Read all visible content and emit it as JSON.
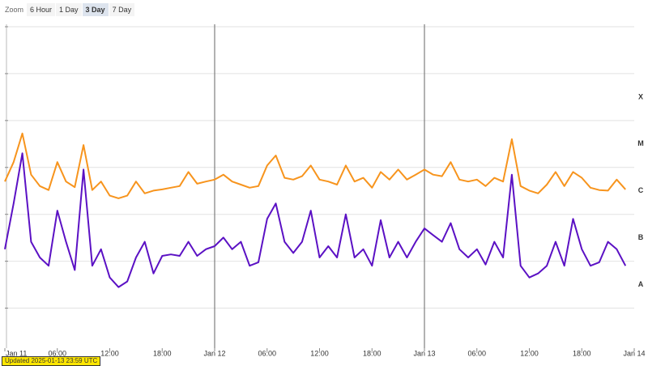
{
  "ui": {
    "zoom_label": "Zoom",
    "zoom_buttons": [
      "6 Hour",
      "1 Day",
      "3 Day",
      "7 Day"
    ],
    "active_button": 2,
    "updated": "Updated 2025-01-13 23:59 UTC"
  },
  "chart_data": {
    "type": "line",
    "log_y": true,
    "grid": true,
    "x": [
      "Jan 11 00:00",
      "Jan 11 01:00",
      "Jan 11 02:00",
      "Jan 11 03:00",
      "Jan 11 04:00",
      "Jan 11 05:00",
      "Jan 11 06:00",
      "Jan 11 07:00",
      "Jan 11 08:00",
      "Jan 11 09:00",
      "Jan 11 10:00",
      "Jan 11 11:00",
      "Jan 11 12:00",
      "Jan 11 13:00",
      "Jan 11 14:00",
      "Jan 11 15:00",
      "Jan 11 16:00",
      "Jan 11 17:00",
      "Jan 11 18:00",
      "Jan 11 19:00",
      "Jan 11 20:00",
      "Jan 11 21:00",
      "Jan 11 22:00",
      "Jan 11 23:00",
      "Jan 12 00:00",
      "Jan 12 01:00",
      "Jan 12 02:00",
      "Jan 12 03:00",
      "Jan 12 04:00",
      "Jan 12 05:00",
      "Jan 12 06:00",
      "Jan 12 07:00",
      "Jan 12 08:00",
      "Jan 12 09:00",
      "Jan 12 10:00",
      "Jan 12 11:00",
      "Jan 12 12:00",
      "Jan 12 13:00",
      "Jan 12 14:00",
      "Jan 12 15:00",
      "Jan 12 16:00",
      "Jan 12 17:00",
      "Jan 12 18:00",
      "Jan 12 19:00",
      "Jan 12 20:00",
      "Jan 12 21:00",
      "Jan 12 22:00",
      "Jan 12 23:00",
      "Jan 13 00:00",
      "Jan 13 01:00",
      "Jan 13 02:00",
      "Jan 13 03:00",
      "Jan 13 04:00",
      "Jan 13 05:00",
      "Jan 13 06:00",
      "Jan 13 07:00",
      "Jan 13 08:00",
      "Jan 13 09:00",
      "Jan 13 10:00",
      "Jan 13 11:00",
      "Jan 13 12:00",
      "Jan 13 13:00",
      "Jan 13 14:00",
      "Jan 13 15:00",
      "Jan 13 16:00",
      "Jan 13 17:00",
      "Jan 13 18:00",
      "Jan 13 19:00",
      "Jan 13 20:00",
      "Jan 13 21:00",
      "Jan 13 22:00",
      "Jan 13 23:00"
    ],
    "xlim": [
      "Jan 11 00:00",
      "Jan 14 00:00"
    ],
    "xticks": [
      {
        "value": "Jan 11 00:00",
        "label": "Jan 11"
      },
      {
        "value": "Jan 11 06:00",
        "label": "06:00"
      },
      {
        "value": "Jan 11 12:00",
        "label": "12:00"
      },
      {
        "value": "Jan 11 18:00",
        "label": "18:00"
      },
      {
        "value": "Jan 12 00:00",
        "label": "Jan 12"
      },
      {
        "value": "Jan 12 06:00",
        "label": "06:00"
      },
      {
        "value": "Jan 12 12:00",
        "label": "12:00"
      },
      {
        "value": "Jan 12 18:00",
        "label": "18:00"
      },
      {
        "value": "Jan 13 00:00",
        "label": "Jan 13"
      },
      {
        "value": "Jan 13 06:00",
        "label": "06:00"
      },
      {
        "value": "Jan 13 12:00",
        "label": "12:00"
      },
      {
        "value": "Jan 13 18:00",
        "label": "18:00"
      },
      {
        "value": "Jan 14 00:00",
        "label": "Jan 14"
      }
    ],
    "ylim": [
      1.4e-09,
      0.01
    ],
    "ygrid": [
      1e-08,
      1e-07,
      1e-06,
      1e-05,
      0.0001,
      0.001,
      0.01
    ],
    "yticks": [
      {
        "value": 3.16e-08,
        "label": "A"
      },
      {
        "value": 3.16e-07,
        "label": "B"
      },
      {
        "value": 3.16e-06,
        "label": "C"
      },
      {
        "value": 3.16e-05,
        "label": "M"
      },
      {
        "value": 0.000316,
        "label": "X"
      }
    ],
    "series": [
      {
        "color": "#f7941d",
        "values": [
          5e-06,
          1.3e-05,
          5.3e-05,
          7e-06,
          4e-06,
          3.3e-06,
          1.3e-05,
          5e-06,
          3.8e-06,
          3e-05,
          3.3e-06,
          5e-06,
          2.5e-06,
          2.2e-06,
          2.5e-06,
          5e-06,
          2.8e-06,
          3.2e-06,
          3.4e-06,
          3.7e-06,
          4e-06,
          8e-06,
          4.5e-06,
          5e-06,
          5.5e-06,
          7e-06,
          5e-06,
          4.3e-06,
          3.7e-06,
          4e-06,
          1.1e-05,
          1.8e-05,
          6e-06,
          5.5e-06,
          6.5e-06,
          1.1e-05,
          5.5e-06,
          5e-06,
          4.3e-06,
          1.1e-05,
          5e-06,
          6e-06,
          3.7e-06,
          8e-06,
          5.5e-06,
          9e-06,
          5.5e-06,
          7e-06,
          9e-06,
          7e-06,
          6.5e-06,
          1.3e-05,
          5.5e-06,
          5e-06,
          5.5e-06,
          4e-06,
          6e-06,
          5e-06,
          4e-05,
          4e-06,
          3.2e-06,
          2.8e-06,
          4.3e-06,
          8e-06,
          4e-06,
          8e-06,
          6e-06,
          3.7e-06,
          3.3e-06,
          3.2e-06,
          5.5e-06,
          3.4e-06
        ]
      },
      {
        "color": "#5b11c4",
        "values": [
          1.8e-07,
          1.7e-06,
          2e-05,
          2.6e-07,
          1.2e-07,
          8e-08,
          1.2e-06,
          2.6e-07,
          6.5e-08,
          9e-06,
          8e-08,
          1.8e-07,
          4.5e-08,
          2.8e-08,
          3.7e-08,
          1.2e-07,
          2.6e-07,
          5.5e-08,
          1.3e-07,
          1.4e-07,
          1.3e-07,
          2.6e-07,
          1.3e-07,
          1.8e-07,
          2.1e-07,
          3.2e-07,
          1.8e-07,
          2.6e-07,
          8e-08,
          9.5e-08,
          8e-07,
          1.7e-06,
          2.6e-07,
          1.5e-07,
          2.6e-07,
          1.2e-06,
          1.2e-07,
          2.1e-07,
          1.2e-07,
          1e-06,
          1.2e-07,
          1.8e-07,
          8e-08,
          7.5e-07,
          1.2e-07,
          2.6e-07,
          1.2e-07,
          2.6e-07,
          5e-07,
          3.6e-07,
          2.6e-07,
          6.5e-07,
          1.8e-07,
          1.2e-07,
          1.8e-07,
          8.5e-08,
          2.6e-07,
          1.2e-07,
          7e-06,
          8e-08,
          4.5e-08,
          5.5e-08,
          8e-08,
          2.6e-07,
          8e-08,
          8e-07,
          1.8e-07,
          8e-08,
          9.5e-08,
          2.6e-07,
          1.8e-07,
          8e-08
        ]
      }
    ]
  }
}
